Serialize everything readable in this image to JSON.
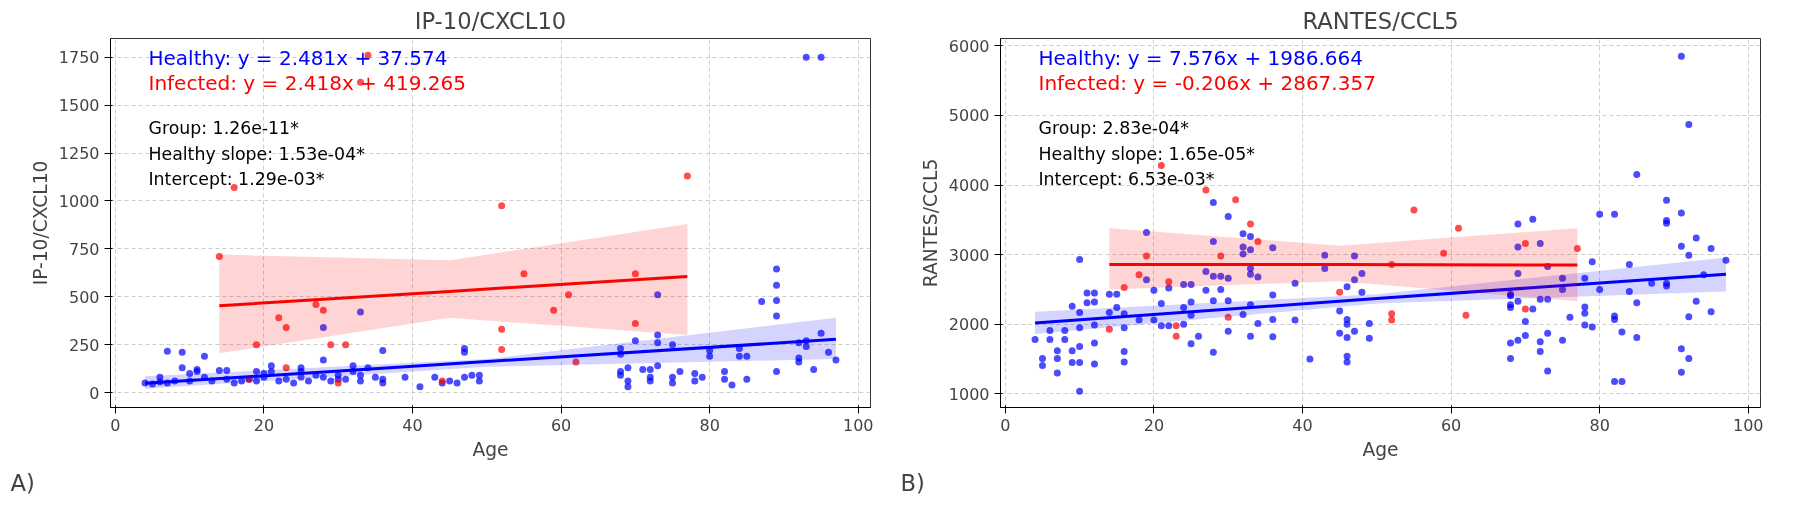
{
  "chart_data": [
    {
      "type": "scatter",
      "title": "IP-10/CXCL10",
      "xlabel": "Age",
      "ylabel": "IP-10/CXCL10",
      "xlim": [
        -0.65,
        101.65
      ],
      "ylim": [
        -78,
        1848
      ],
      "xticks": [
        0,
        20,
        40,
        60,
        80,
        100
      ],
      "yticks": [
        0,
        250,
        500,
        750,
        1000,
        1250,
        1500,
        1750
      ],
      "grid": true,
      "marker": "circle",
      "annotations": [
        "Healthy: y = 2.481x + 37.574",
        "Infected: y = 2.418x + 419.265",
        "Group: 1.26e-11*",
        "Healthy slope: 1.53e-04*",
        "Intercept: 1.29e-03*",
        "A)"
      ],
      "series": [
        {
          "color": "#0000ff",
          "x": [
            4,
            5,
            6,
            6,
            7,
            7,
            8,
            9,
            9,
            10,
            10,
            11,
            11,
            12,
            12,
            13,
            14,
            15,
            15,
            16,
            17,
            18,
            19,
            19,
            20,
            20,
            21,
            21,
            22,
            23,
            24,
            25,
            25,
            25,
            26,
            27,
            28,
            28,
            28,
            29,
            30,
            30,
            31,
            32,
            32,
            33,
            33,
            33,
            34,
            35,
            36,
            36,
            36,
            39,
            41,
            43,
            44,
            45,
            46,
            47,
            47,
            47,
            48,
            49,
            49,
            68,
            68,
            68,
            68,
            69,
            69,
            69,
            70,
            71,
            72,
            72,
            72,
            73,
            73,
            73,
            73,
            75,
            75,
            75,
            76,
            78,
            78,
            79,
            80,
            80,
            82,
            82,
            83,
            84,
            84,
            85,
            85,
            87,
            89,
            89,
            89,
            89,
            89,
            92,
            92,
            92,
            93,
            93,
            94,
            95,
            93,
            95,
            96,
            97
          ],
          "values": [
            50,
            45,
            55,
            80,
            50,
            215,
            60,
            210,
            130,
            100,
            60,
            110,
            120,
            80,
            190,
            60,
            115,
            115,
            70,
            50,
            60,
            70,
            110,
            60,
            100,
            80,
            110,
            140,
            60,
            70,
            50,
            130,
            110,
            80,
            60,
            90,
            170,
            80,
            340,
            60,
            90,
            70,
            70,
            140,
            110,
            420,
            60,
            90,
            130,
            80,
            220,
            70,
            50,
            80,
            30,
            80,
            50,
            60,
            50,
            80,
            210,
            230,
            90,
            60,
            90,
            230,
            200,
            110,
            90,
            130,
            60,
            30,
            270,
            120,
            120,
            60,
            80,
            510,
            300,
            260,
            140,
            250,
            80,
            50,
            110,
            100,
            60,
            80,
            220,
            190,
            110,
            70,
            40,
            230,
            190,
            190,
            70,
            475,
            645,
            560,
            480,
            400,
            110,
            260,
            180,
            160,
            270,
            240,
            120,
            310,
            1750,
            1750,
            210,
            170
          ]
        },
        {
          "color": "#ff0000",
          "x": [
            14,
            33,
            34,
            27,
            28,
            22,
            23,
            19,
            29,
            31,
            23,
            18,
            30,
            44,
            52,
            77,
            55,
            70,
            61,
            59,
            70,
            52,
            52,
            62,
            16
          ],
          "values": [
            710,
            1620,
            1760,
            460,
            430,
            390,
            340,
            250,
            250,
            250,
            130,
            70,
            50,
            60,
            975,
            1130,
            620,
            620,
            510,
            430,
            360,
            330,
            225,
            160,
            1070
          ]
        },
        {
          "type": "line",
          "marker": "none",
          "color": "#0000ff",
          "x": [
            4,
            50,
            97
          ],
          "values": [
            48,
            162,
            278
          ],
          "lower": [
            20,
            135,
            175
          ],
          "upper": [
            85,
            175,
            390
          ]
        },
        {
          "type": "line",
          "marker": "none",
          "color": "#ff0000",
          "x": [
            14,
            45,
            77
          ],
          "values": [
            453,
            528,
            606
          ],
          "lower": [
            205,
            390,
            300
          ],
          "upper": [
            720,
            690,
            880
          ]
        }
      ]
    },
    {
      "type": "scatter",
      "title": "RANTES/CCL5",
      "xlabel": "Age",
      "ylabel": "RANTES/CCL5",
      "xlim": [
        -0.65,
        101.65
      ],
      "ylim": [
        805,
        6105
      ],
      "xticks": [
        0,
        20,
        40,
        60,
        80,
        100
      ],
      "yticks": [
        1000,
        2000,
        3000,
        4000,
        5000,
        6000
      ],
      "grid": true,
      "marker": "circle",
      "annotations": [
        "Healthy: y = 7.576x + 1986.664",
        "Infected: y = -0.206x + 2867.357",
        "Group: 2.83e-04*",
        "Healthy slope: 1.65e-05*",
        "Intercept: 6.53e-03*",
        "B)"
      ],
      "series": [
        {
          "color": "#0000ff",
          "x": [
            4,
            5,
            5,
            6,
            6,
            7,
            7,
            7,
            8,
            8,
            9,
            9,
            9,
            10,
            10,
            10,
            10,
            10,
            10,
            11,
            11,
            12,
            12,
            12,
            12,
            12,
            14,
            14,
            15,
            15,
            16,
            16,
            16,
            16,
            18,
            19,
            19,
            20,
            20,
            21,
            21,
            22,
            22,
            24,
            24,
            24,
            25,
            25,
            25,
            25,
            26,
            27,
            27,
            28,
            28,
            28,
            28,
            29,
            29,
            30,
            30,
            30,
            30,
            32,
            32,
            32,
            32,
            33,
            33,
            33,
            33,
            33,
            33,
            34,
            34,
            36,
            36,
            36,
            36,
            39,
            39,
            41,
            43,
            43,
            45,
            45,
            46,
            46,
            46,
            46,
            46,
            46,
            47,
            47,
            47,
            48,
            48,
            49,
            49,
            28,
            68,
            68,
            68,
            68,
            68,
            68,
            69,
            69,
            69,
            69,
            69,
            70,
            70,
            71,
            71,
            72,
            72,
            72,
            72,
            73,
            73,
            73,
            73,
            75,
            75,
            75,
            76,
            78,
            78,
            78,
            78,
            79,
            79,
            80,
            80,
            82,
            82,
            82,
            83,
            83,
            82,
            84,
            84,
            85,
            85,
            85,
            87,
            89,
            89,
            89,
            89,
            89,
            91,
            91,
            91,
            91,
            91,
            92,
            92,
            92,
            92,
            93,
            93,
            94,
            95,
            95,
            97
          ],
          "values": [
            1780,
            1510,
            1410,
            1910,
            1780,
            1620,
            1510,
            1300,
            1910,
            1780,
            2260,
            1620,
            1450,
            2930,
            2170,
            1950,
            1680,
            1450,
            1040,
            2450,
            2310,
            2450,
            2320,
            1990,
            1730,
            1430,
            2430,
            2170,
            2430,
            2240,
            2150,
            1950,
            1610,
            1460,
            2060,
            3320,
            2640,
            2490,
            2060,
            2300,
            1980,
            2520,
            1980,
            2570,
            2000,
            2240,
            2570,
            2320,
            2130,
            1720,
            1830,
            2760,
            2490,
            3190,
            2690,
            2340,
            1600,
            2690,
            2500,
            3550,
            2660,
            2340,
            1900,
            3010,
            3110,
            2140,
            3300,
            3260,
            3070,
            2800,
            2720,
            2280,
            1830,
            2680,
            2010,
            3100,
            2420,
            2070,
            1820,
            2590,
            2060,
            1500,
            2990,
            2800,
            2190,
            1870,
            2070,
            2000,
            1810,
            1540,
            1460,
            2540,
            2980,
            1900,
            2640,
            2730,
            2460,
            2010,
            1800,
            3750,
            2430,
            2410,
            2280,
            2240,
            1730,
            1510,
            3440,
            3110,
            2730,
            2330,
            1770,
            2040,
            1840,
            3510,
            2220,
            3160,
            2360,
            1750,
            1610,
            2360,
            2830,
            1870,
            1330,
            2660,
            2500,
            1770,
            2100,
            2660,
            2250,
            2160,
            1990,
            2900,
            1960,
            3580,
            2500,
            3580,
            2120,
            2070,
            1890,
            1180,
            1180,
            2860,
            2470,
            4150,
            2310,
            1810,
            2590,
            3780,
            3490,
            3450,
            2590,
            2550,
            5850,
            3600,
            3120,
            1650,
            1310,
            4870,
            2990,
            2110,
            1510,
            3240,
            2330,
            2710,
            3090,
            2180,
            2920
          ]
        },
        {
          "color": "#ff0000",
          "x": [
            14,
            16,
            18,
            19,
            22,
            23,
            23,
            29,
            30,
            33,
            34,
            45,
            21,
            27,
            31,
            52,
            52,
            52,
            55,
            59,
            61,
            62,
            70,
            70,
            77
          ],
          "values": [
            1930,
            2530,
            2710,
            2980,
            2610,
            1980,
            1830,
            2980,
            2100,
            3440,
            3190,
            2460,
            4280,
            3930,
            3790,
            2860,
            2150,
            2060,
            3640,
            3020,
            3380,
            2130,
            3160,
            2220,
            3090
          ]
        },
        {
          "type": "line",
          "marker": "none",
          "color": "#0000ff",
          "x": [
            4,
            50,
            97
          ],
          "values": [
            2020,
            2370,
            2720
          ],
          "lower": [
            1860,
            2300,
            2470
          ],
          "upper": [
            2180,
            2430,
            2960
          ]
        },
        {
          "type": "line",
          "marker": "none",
          "color": "#ff0000",
          "x": [
            14,
            45,
            77
          ],
          "values": [
            2860,
            2860,
            2850
          ],
          "lower": [
            2500,
            2620,
            2330
          ],
          "upper": [
            3380,
            3130,
            3380
          ]
        }
      ]
    }
  ]
}
